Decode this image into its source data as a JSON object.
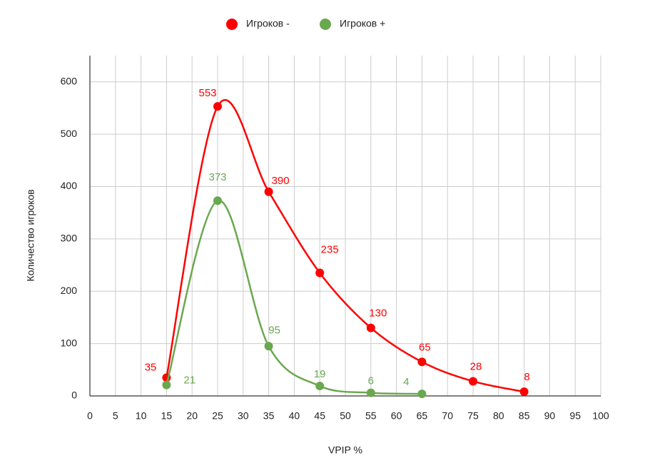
{
  "chart_data": {
    "type": "line",
    "x_label": "VPIP %",
    "y_label": "Количество игроков",
    "xlim": [
      0,
      100
    ],
    "xticks": [
      0,
      5,
      10,
      15,
      20,
      25,
      30,
      35,
      40,
      45,
      50,
      55,
      60,
      65,
      70,
      75,
      80,
      85,
      90,
      95,
      100
    ],
    "ylim": [
      0,
      650
    ],
    "yticks": [
      0,
      100,
      200,
      300,
      400,
      500,
      600
    ],
    "grid": true,
    "legend": "top",
    "series": [
      {
        "name": "Игроков -",
        "color": "#ff0000",
        "x": [
          15,
          25,
          35,
          45,
          55,
          65,
          75,
          85
        ],
        "values": [
          35,
          553,
          390,
          235,
          130,
          65,
          28,
          8
        ]
      },
      {
        "name": "Игроков +",
        "color": "#6aa84f",
        "x": [
          15,
          25,
          35,
          45,
          55,
          65
        ],
        "values": [
          21,
          373,
          95,
          19,
          6,
          4
        ]
      }
    ]
  }
}
